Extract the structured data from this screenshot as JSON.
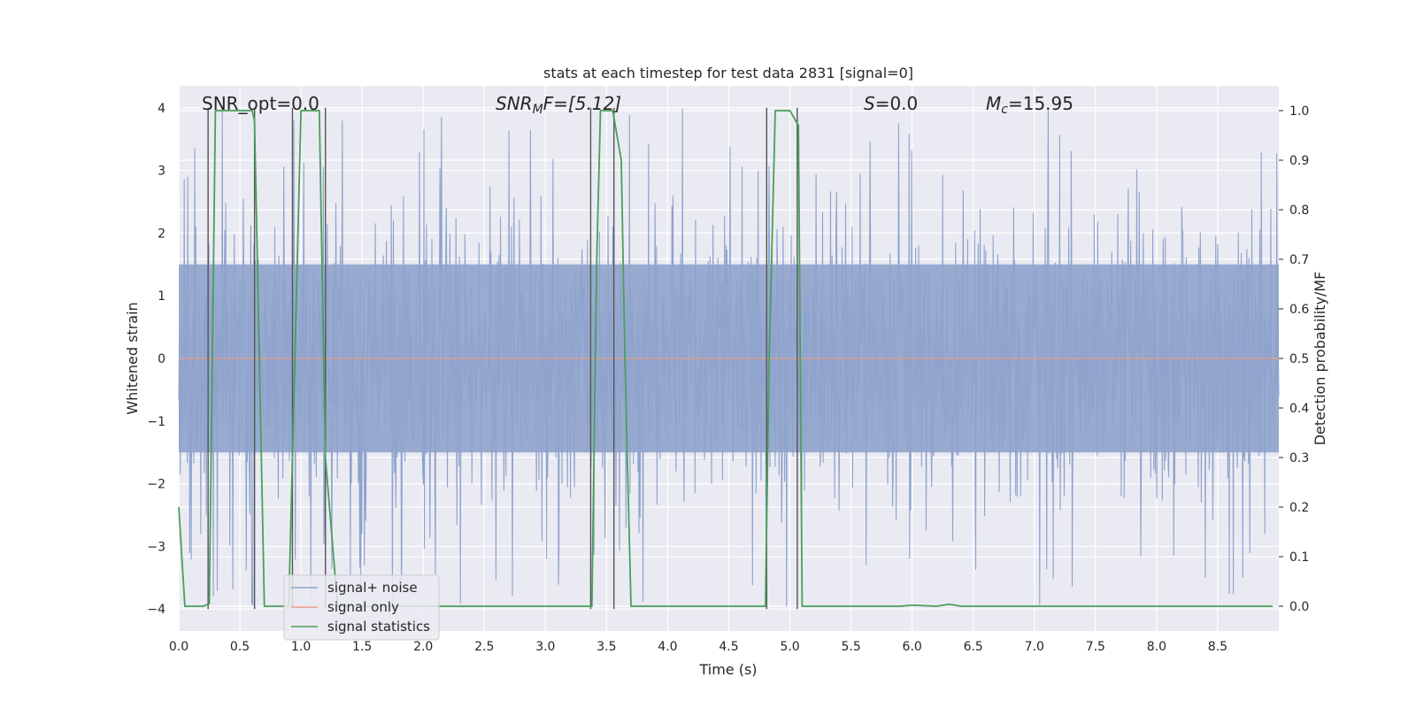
{
  "chart_data": {
    "type": "line",
    "title": "stats at each timestep for test data 2831 [signal=0]",
    "xlabel": "Time (s)",
    "ylabel_left": "Whitened strain",
    "ylabel_right": "Detection probability/MF",
    "xlim": [
      0,
      9
    ],
    "ylim_left": [
      -4.35,
      4.35
    ],
    "ylim_right": [
      -0.05,
      1.05
    ],
    "grid": true,
    "xticks": [
      "0.0",
      "0.5",
      "1.0",
      "1.5",
      "2.0",
      "2.5",
      "3.0",
      "3.5",
      "4.0",
      "4.5",
      "5.0",
      "5.5",
      "6.0",
      "6.5",
      "7.0",
      "7.5",
      "8.0",
      "8.5"
    ],
    "yticks_left": [
      "4",
      "3",
      "2",
      "1",
      "0",
      "−1",
      "−2",
      "−3",
      "−4"
    ],
    "yticks_right": [
      "1.0",
      "0.9",
      "0.8",
      "0.7",
      "0.6",
      "0.5",
      "0.4",
      "0.3",
      "0.2",
      "0.1",
      "0.0"
    ],
    "annotations": {
      "snr_opt": "SNR_opt=0.0",
      "snr_mf_main": "SNR",
      "snr_mf_sub": "M",
      "snr_mf_rest": "F=[5.12]",
      "s_main": "S",
      "s_rest": "=0.0",
      "mc_main": "M",
      "mc_sub": "c",
      "mc_rest": "=15.95"
    },
    "legend": {
      "placement": "lower-left",
      "entries": [
        "signal+ noise",
        "signal only",
        "signal statistics"
      ]
    },
    "colors": {
      "signal_noise": "#8fa3cc",
      "signal_only": "#e8a084",
      "statistics": "#4a9e5c",
      "vlines": "#555555",
      "background": "#eaeaf2",
      "grid": "#ffffff"
    },
    "series": [
      {
        "name": "signal+ noise",
        "description_key": "dense whitened-strain noise, roughly ±1.5 with spikes up to ±4",
        "amplitude_core": 1.5,
        "amplitude_peak": 4.0
      },
      {
        "name": "signal only",
        "x": [
          0,
          9
        ],
        "y": [
          0,
          0
        ]
      },
      {
        "name": "signal statistics",
        "x": [
          0,
          0.05,
          0.2,
          0.25,
          0.3,
          0.6,
          0.62,
          0.7,
          0.9,
          0.95,
          1.0,
          1.15,
          1.2,
          1.3,
          3.38,
          3.42,
          3.45,
          3.55,
          3.62,
          3.65,
          3.7,
          4.8,
          4.83,
          4.88,
          5.0,
          5.07,
          5.1,
          5.9,
          6.0,
          6.2,
          6.3,
          6.4,
          8.95
        ],
        "y": [
          0.2,
          0.0,
          0.0,
          0.005,
          1.0,
          1.0,
          0.98,
          0.0,
          0.0,
          0.5,
          1.0,
          1.0,
          0.3,
          0.0,
          0.0,
          0.7,
          1.0,
          1.0,
          0.9,
          0.5,
          0.0,
          0.0,
          0.5,
          1.0,
          1.0,
          0.97,
          0.0,
          0.0,
          0.002,
          0.0,
          0.004,
          0.0,
          0.0
        ]
      }
    ],
    "vlines_x": [
      0.24,
      0.62,
      0.93,
      1.2,
      3.37,
      3.56,
      4.81,
      5.06
    ]
  }
}
